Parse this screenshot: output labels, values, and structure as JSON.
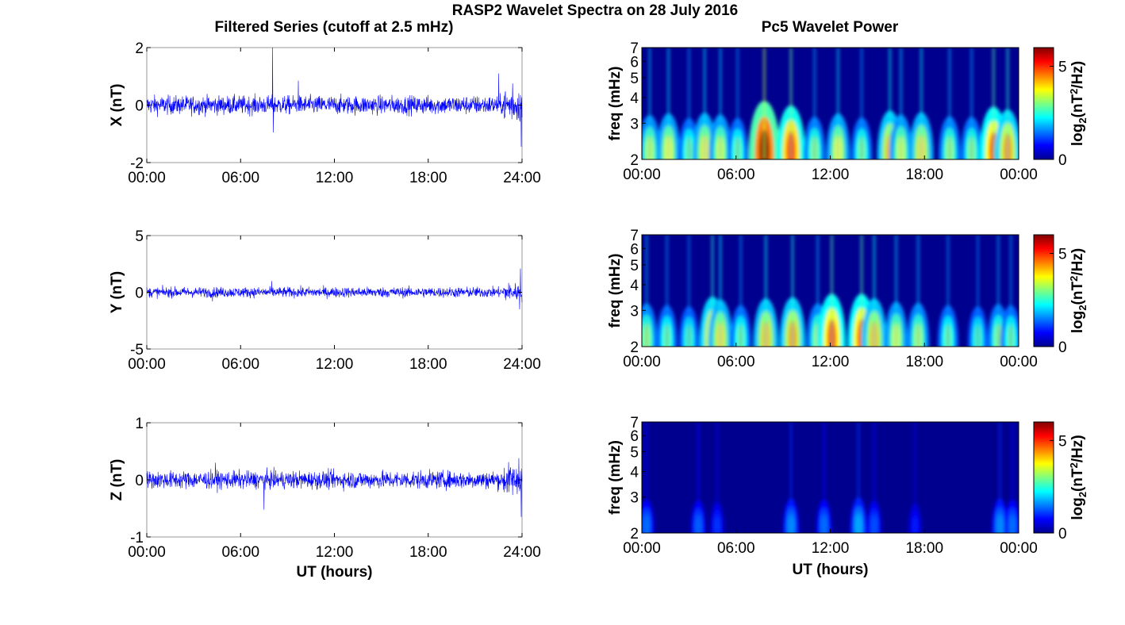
{
  "title": "RASP2 Wavelet Spectra on 28 July 2016",
  "left_title": "Filtered Series (cutoff at 2.5 mHz)",
  "right_title": "Pc5 Wavelet Power",
  "colors": {
    "trace": "#0000ff",
    "frame": "#9a9a9a"
  },
  "chart_data": [
    {
      "type": "line",
      "panel": "X",
      "ylabel": "X (nT)",
      "xlabel": "",
      "ylim": [
        -2,
        2
      ],
      "yticks": [
        "2",
        "0",
        "-2"
      ],
      "xticks": [
        "00:00",
        "06:00",
        "12:00",
        "18:00",
        "24:00"
      ],
      "xlim_hours": [
        0,
        24
      ],
      "baseline_amplitude": 0.25,
      "spikes": [
        {
          "hour": 8.05,
          "value": 2.0
        },
        {
          "hour": 8.1,
          "value": -0.95
        },
        {
          "hour": 9.7,
          "value": 0.85
        },
        {
          "hour": 22.5,
          "value": 1.1
        },
        {
          "hour": 23.4,
          "value": 0.75
        },
        {
          "hour": 23.95,
          "value": -1.45
        }
      ],
      "series": [
        {
          "values_description_points": 2000,
          "values": []
        }
      ]
    },
    {
      "type": "line",
      "panel": "Y",
      "ylabel": "Y (nT)",
      "xlabel": "",
      "ylim": [
        -5,
        5
      ],
      "yticks": [
        "5",
        "0",
        "-5"
      ],
      "xticks": [
        "00:00",
        "06:00",
        "12:00",
        "18:00",
        "24:00"
      ],
      "xlim_hours": [
        0,
        24
      ],
      "baseline_amplitude": 0.35,
      "spikes": [
        {
          "hour": 4.2,
          "value": -0.8
        },
        {
          "hour": 8.0,
          "value": 1.0
        },
        {
          "hour": 23.9,
          "value": 2.1
        },
        {
          "hour": 23.85,
          "value": -1.5
        }
      ],
      "series": [
        {
          "values": []
        }
      ]
    },
    {
      "type": "line",
      "panel": "Z",
      "ylabel": "Z (nT)",
      "xlabel": "UT (hours)",
      "ylim": [
        -1,
        1
      ],
      "yticks": [
        "1",
        "0",
        "-1"
      ],
      "xticks": [
        "00:00",
        "06:00",
        "12:00",
        "18:00",
        "24:00"
      ],
      "xlim_hours": [
        0,
        24
      ],
      "baseline_amplitude": 0.12,
      "spikes": [
        {
          "hour": 7.5,
          "value": -0.52
        },
        {
          "hour": 4.4,
          "value": 0.3
        },
        {
          "hour": 23.8,
          "value": 0.38
        },
        {
          "hour": 23.95,
          "value": -0.65
        }
      ],
      "series": [
        {
          "values": []
        }
      ]
    },
    {
      "type": "heatmap",
      "panel": "X",
      "ylabel": "freq (mHz)",
      "xlabel": "",
      "yticks": [
        "7",
        "6",
        "5",
        "4",
        "3",
        "2"
      ],
      "ylim_mhz": [
        2,
        7
      ],
      "xticks": [
        "00:00",
        "06:00",
        "12:00",
        "18:00",
        "00:00"
      ],
      "xlim_hours": [
        0,
        24
      ],
      "colorbar_label": "log2(nT2/Hz)",
      "colorbar_ticks": [
        "5",
        "0"
      ],
      "clim": [
        0,
        6
      ],
      "peaks": [
        {
          "hour": 0.5,
          "power": 3.5
        },
        {
          "hour": 1.7,
          "power": 3.8
        },
        {
          "hour": 3.0,
          "power": 3.0
        },
        {
          "hour": 4.0,
          "power": 3.9
        },
        {
          "hour": 5.0,
          "power": 3.6
        },
        {
          "hour": 6.1,
          "power": 3.0
        },
        {
          "hour": 7.8,
          "power": 6.0
        },
        {
          "hour": 9.5,
          "power": 5.2
        },
        {
          "hour": 11.0,
          "power": 3.2
        },
        {
          "hour": 12.5,
          "power": 3.8
        },
        {
          "hour": 14.0,
          "power": 3.1
        },
        {
          "hour": 15.8,
          "power": 4.3
        },
        {
          "hour": 16.5,
          "power": 3.6
        },
        {
          "hour": 17.8,
          "power": 4.0
        },
        {
          "hour": 19.6,
          "power": 3.3
        },
        {
          "hour": 21.0,
          "power": 3.2
        },
        {
          "hour": 22.4,
          "power": 5.0
        },
        {
          "hour": 23.3,
          "power": 4.5
        }
      ]
    },
    {
      "type": "heatmap",
      "panel": "Y",
      "ylabel": "freq (mHz)",
      "xlabel": "",
      "yticks": [
        "7",
        "6",
        "5",
        "4",
        "3",
        "2"
      ],
      "ylim_mhz": [
        2,
        7
      ],
      "xticks": [
        "00:00",
        "06:00",
        "12:00",
        "18:00",
        "00:00"
      ],
      "xlim_hours": [
        0,
        24
      ],
      "colorbar_label": "log2(nT2/Hz)",
      "colorbar_ticks": [
        "5",
        "0"
      ],
      "clim": [
        0,
        6
      ],
      "peaks": [
        {
          "hour": 0.3,
          "power": 3.3
        },
        {
          "hour": 1.6,
          "power": 3.0
        },
        {
          "hour": 3.0,
          "power": 2.8
        },
        {
          "hour": 4.5,
          "power": 4.5
        },
        {
          "hour": 5.0,
          "power": 4.0
        },
        {
          "hour": 6.3,
          "power": 3.0
        },
        {
          "hour": 7.9,
          "power": 4.2
        },
        {
          "hour": 9.6,
          "power": 4.4
        },
        {
          "hour": 11.2,
          "power": 3.3
        },
        {
          "hour": 12.1,
          "power": 5.0
        },
        {
          "hour": 14.0,
          "power": 5.0
        },
        {
          "hour": 14.8,
          "power": 4.2
        },
        {
          "hour": 16.2,
          "power": 3.6
        },
        {
          "hour": 17.6,
          "power": 3.4
        },
        {
          "hour": 19.5,
          "power": 3.0
        },
        {
          "hour": 21.4,
          "power": 2.8
        },
        {
          "hour": 22.7,
          "power": 3.2
        },
        {
          "hour": 23.5,
          "power": 3.0
        }
      ]
    },
    {
      "type": "heatmap",
      "panel": "Z",
      "ylabel": "freq (mHz)",
      "xlabel": "UT (hours)",
      "yticks": [
        "7",
        "6",
        "5",
        "4",
        "3",
        "2"
      ],
      "ylim_mhz": [
        2,
        7
      ],
      "xticks": [
        "00:00",
        "06:00",
        "12:00",
        "18:00",
        "00:00"
      ],
      "xlim_hours": [
        0,
        24
      ],
      "colorbar_label": "log2(nT2/Hz)",
      "colorbar_ticks": [
        "5",
        "0"
      ],
      "clim": [
        0,
        6
      ],
      "peaks": [
        {
          "hour": 0.3,
          "power": 1.6
        },
        {
          "hour": 3.6,
          "power": 1.5
        },
        {
          "hour": 4.8,
          "power": 1.2
        },
        {
          "hour": 9.5,
          "power": 1.8
        },
        {
          "hour": 11.6,
          "power": 1.6
        },
        {
          "hour": 13.8,
          "power": 2.0
        },
        {
          "hour": 14.8,
          "power": 1.4
        },
        {
          "hour": 17.4,
          "power": 1.0
        },
        {
          "hour": 22.8,
          "power": 1.8
        },
        {
          "hour": 23.6,
          "power": 1.6
        }
      ]
    }
  ]
}
